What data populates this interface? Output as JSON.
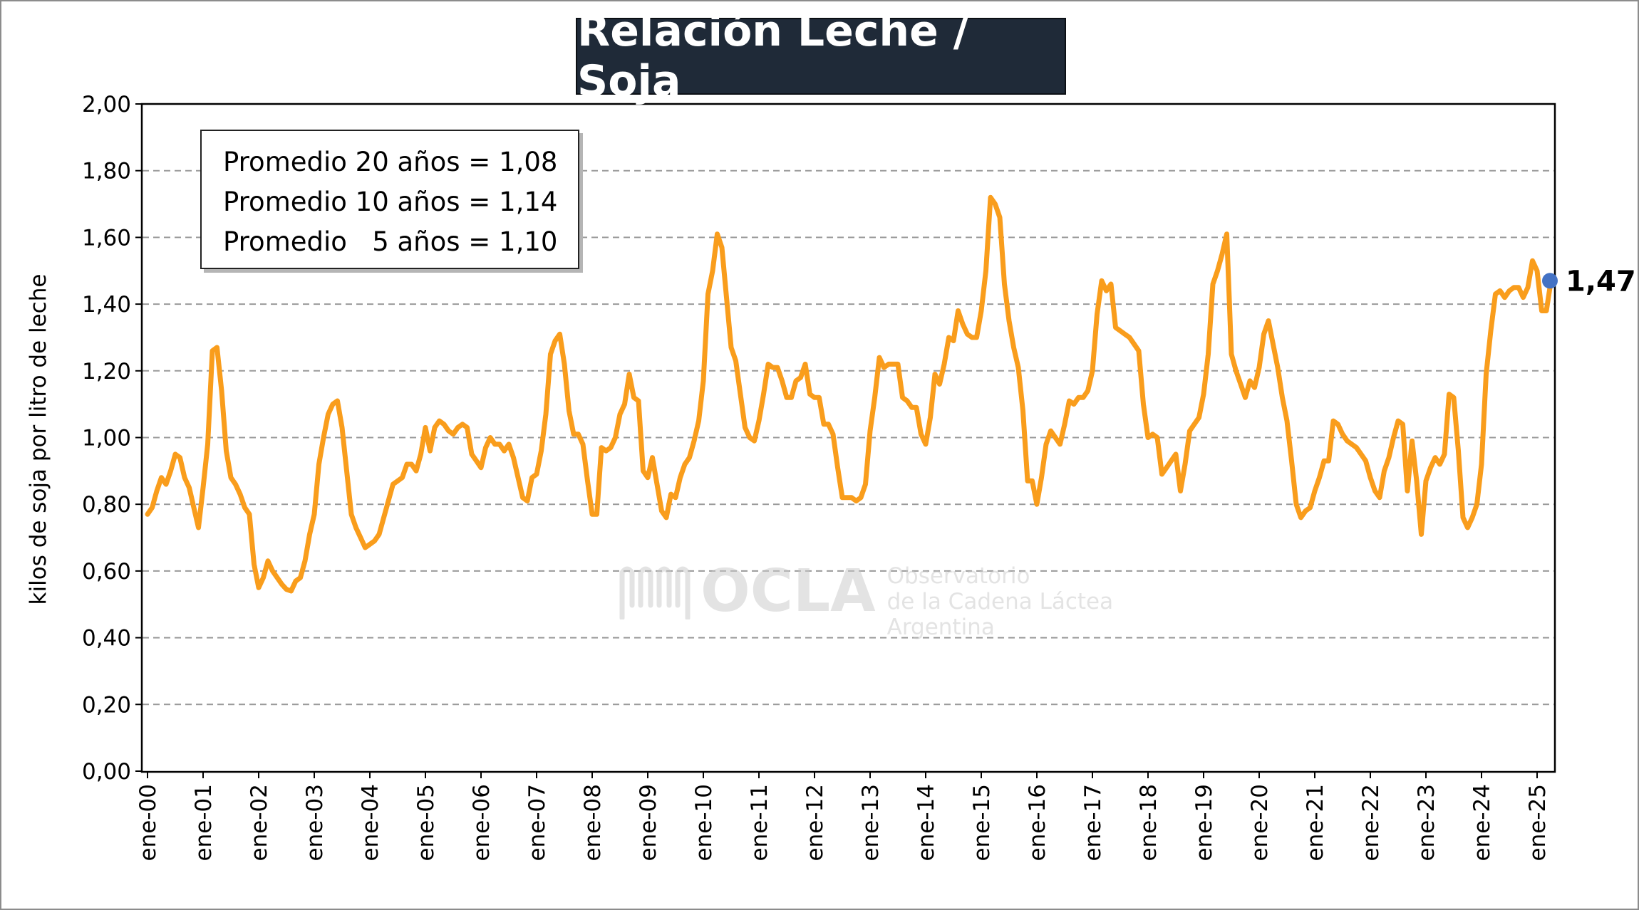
{
  "title": "Relación Leche / Soja",
  "averages": [
    "Promedio 20 años = 1,08",
    "Promedio 10 años = 1,14",
    "Promedio   5 años = 1,10"
  ],
  "watermark": {
    "brand": "OCLA",
    "line1": "Observatorio",
    "line2": "de la Cadena Láctea",
    "line3": "Argentina"
  },
  "colors": {
    "series": "#f99d1c",
    "last_point": "#4472c4",
    "title_bg": "#1f2a38",
    "grid": "#9a9a9a"
  },
  "chart_data": {
    "type": "line",
    "title": "Relación Leche / Soja",
    "ylabel": "kilos de soja por litro de leche",
    "xlabel": "",
    "ylim": [
      0,
      2
    ],
    "y_ticks": [
      "0,00",
      "0,20",
      "0,40",
      "0,60",
      "0,80",
      "1,00",
      "1,20",
      "1,40",
      "1,60",
      "1,80",
      "2,00"
    ],
    "x_ticks": [
      "ene-00",
      "ene-01",
      "ene-02",
      "ene-03",
      "ene-04",
      "ene-05",
      "ene-06",
      "ene-07",
      "ene-08",
      "ene-09",
      "ene-10",
      "ene-11",
      "ene-12",
      "ene-13",
      "ene-14",
      "ene-15",
      "ene-16",
      "ene-17",
      "ene-18",
      "ene-19",
      "ene-20",
      "ene-21",
      "ene-22",
      "ene-23",
      "ene-24",
      "ene-25"
    ],
    "grid": "horizontal dashed",
    "frequency": "monthly",
    "last_value_label": "1,47",
    "values": [
      0.77,
      0.79,
      0.84,
      0.88,
      0.86,
      0.9,
      0.95,
      0.94,
      0.88,
      0.85,
      0.79,
      0.73,
      0.85,
      0.98,
      1.26,
      1.27,
      1.14,
      0.96,
      0.88,
      0.86,
      0.83,
      0.79,
      0.77,
      0.62,
      0.55,
      0.58,
      0.63,
      0.6,
      0.58,
      0.56,
      0.545,
      0.54,
      0.57,
      0.58,
      0.63,
      0.71,
      0.77,
      0.92,
      1.0,
      1.07,
      1.1,
      1.11,
      1.03,
      0.9,
      0.77,
      0.73,
      0.7,
      0.67,
      0.68,
      0.69,
      0.71,
      0.76,
      0.81,
      0.86,
      0.87,
      0.88,
      0.92,
      0.92,
      0.9,
      0.95,
      1.03,
      0.96,
      1.03,
      1.05,
      1.04,
      1.02,
      1.01,
      1.03,
      1.04,
      1.03,
      0.95,
      0.93,
      0.91,
      0.97,
      1.0,
      0.98,
      0.98,
      0.96,
      0.98,
      0.94,
      0.88,
      0.82,
      0.81,
      0.88,
      0.89,
      0.96,
      1.07,
      1.25,
      1.29,
      1.31,
      1.22,
      1.08,
      1.01,
      1.01,
      0.98,
      0.87,
      0.77,
      0.77,
      0.97,
      0.96,
      0.97,
      1.0,
      1.07,
      1.1,
      1.19,
      1.12,
      1.11,
      0.9,
      0.88,
      0.94,
      0.86,
      0.78,
      0.76,
      0.83,
      0.82,
      0.88,
      0.92,
      0.94,
      0.99,
      1.05,
      1.17,
      1.43,
      1.5,
      1.61,
      1.57,
      1.42,
      1.27,
      1.23,
      1.13,
      1.03,
      1.0,
      0.99,
      1.05,
      1.13,
      1.22,
      1.21,
      1.21,
      1.17,
      1.12,
      1.12,
      1.17,
      1.18,
      1.22,
      1.13,
      1.12,
      1.12,
      1.04,
      1.04,
      1.01,
      0.91,
      0.82,
      0.82,
      0.82,
      0.81,
      0.82,
      0.86,
      1.02,
      1.12,
      1.24,
      1.21,
      1.22,
      1.22,
      1.22,
      1.12,
      1.11,
      1.09,
      1.09,
      1.01,
      0.98,
      1.06,
      1.19,
      1.16,
      1.22,
      1.3,
      1.29,
      1.38,
      1.34,
      1.31,
      1.3,
      1.3,
      1.38,
      1.5,
      1.72,
      1.7,
      1.66,
      1.46,
      1.35,
      1.27,
      1.21,
      1.08,
      0.87,
      0.87,
      0.8,
      0.88,
      0.98,
      1.02,
      1.0,
      0.98,
      1.04,
      1.11,
      1.1,
      1.12,
      1.12,
      1.14,
      1.2,
      1.37,
      1.47,
      1.44,
      1.46,
      1.33,
      1.32,
      1.31,
      1.3,
      1.28,
      1.26,
      1.1,
      1.0,
      1.01,
      1.0,
      0.89,
      0.91,
      0.93,
      0.95,
      0.84,
      0.92,
      1.02,
      1.04,
      1.06,
      1.13,
      1.25,
      1.46,
      1.5,
      1.55,
      1.61,
      1.25,
      1.2,
      1.16,
      1.12,
      1.17,
      1.15,
      1.21,
      1.31,
      1.35,
      1.28,
      1.21,
      1.12,
      1.05,
      0.93,
      0.8,
      0.76,
      0.78,
      0.79,
      0.84,
      0.88,
      0.93,
      0.93,
      1.05,
      1.04,
      1.01,
      0.99,
      0.98,
      0.97,
      0.95,
      0.93,
      0.88,
      0.84,
      0.82,
      0.9,
      0.94,
      1.0,
      1.05,
      1.04,
      0.84,
      0.99,
      0.87,
      0.71,
      0.87,
      0.91,
      0.94,
      0.92,
      0.95,
      1.13,
      1.12,
      0.96,
      0.76,
      0.73,
      0.76,
      0.8,
      0.92,
      1.19,
      1.32,
      1.43,
      1.44,
      1.42,
      1.44,
      1.45,
      1.45,
      1.42,
      1.45,
      1.53,
      1.5,
      1.38,
      1.38,
      1.47
    ]
  }
}
